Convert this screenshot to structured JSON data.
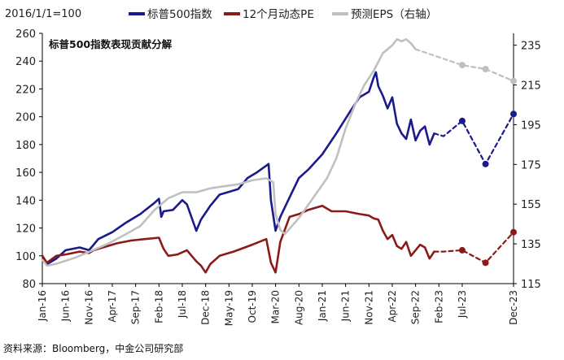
{
  "note": "2016/1/1=100",
  "title": "标普500指数表现贡献分解",
  "source": "资料来源：Bloomberg，中金公司研究部",
  "colors": {
    "sp500": "#1a1a8c",
    "pe": "#8b1a1a",
    "eps": "#c0c0c0",
    "axis": "#000000"
  },
  "chart_data": {
    "type": "line",
    "x_ticks": [
      "Jan-16",
      "Jun-16",
      "Nov-16",
      "Apr-17",
      "Sep-17",
      "Feb-18",
      "Jul-18",
      "Dec-18",
      "May-19",
      "Oct-19",
      "Mar-20",
      "Aug-20",
      "Jan-21",
      "Jun-21",
      "Nov-21",
      "Apr-22",
      "Sep-22",
      "Feb-23",
      "Jul-23",
      "Dec-23"
    ],
    "y_left": {
      "ticks": [
        80,
        100,
        120,
        140,
        160,
        180,
        200,
        220,
        240,
        260
      ],
      "range": [
        80,
        260
      ]
    },
    "y_right": {
      "ticks": [
        115,
        135,
        155,
        175,
        195,
        215,
        235
      ],
      "range": [
        115,
        241
      ]
    },
    "series": [
      {
        "name": "标普500指数",
        "axis": "left",
        "style": "solid",
        "points": [
          [
            0,
            100
          ],
          [
            1,
            94
          ],
          [
            3,
            98
          ],
          [
            5,
            104
          ],
          [
            8,
            106
          ],
          [
            10,
            104
          ],
          [
            11,
            108
          ],
          [
            12,
            112
          ],
          [
            15,
            117
          ],
          [
            18,
            124
          ],
          [
            21,
            130
          ],
          [
            24,
            138
          ],
          [
            25,
            141
          ],
          [
            25.5,
            128
          ],
          [
            26,
            132
          ],
          [
            28,
            133
          ],
          [
            30,
            140
          ],
          [
            31,
            137
          ],
          [
            33,
            118
          ],
          [
            34,
            126
          ],
          [
            36,
            136
          ],
          [
            38,
            144
          ],
          [
            40,
            146
          ],
          [
            42,
            148
          ],
          [
            44,
            156
          ],
          [
            46,
            160
          ],
          [
            48.5,
            166
          ],
          [
            49,
            140
          ],
          [
            50,
            118
          ],
          [
            51,
            128
          ],
          [
            53,
            142
          ],
          [
            55,
            156
          ],
          [
            57,
            162
          ],
          [
            60,
            173
          ],
          [
            63,
            188
          ],
          [
            66,
            204
          ],
          [
            68,
            214
          ],
          [
            70,
            218
          ],
          [
            71,
            228
          ],
          [
            71.5,
            232
          ],
          [
            72,
            222
          ],
          [
            73,
            215
          ],
          [
            74,
            206
          ],
          [
            75,
            214
          ],
          [
            76,
            195
          ],
          [
            77,
            188
          ],
          [
            78,
            184
          ],
          [
            79,
            198
          ],
          [
            80,
            183
          ],
          [
            81,
            190
          ],
          [
            82,
            193
          ],
          [
            83,
            180
          ],
          [
            84,
            188
          ]
        ]
      },
      {
        "name": "标普500指数",
        "axis": "left",
        "style": "dashed",
        "points": [
          [
            84,
            188
          ],
          [
            86,
            186
          ],
          [
            90,
            197
          ],
          [
            95,
            166
          ],
          [
            101,
            202
          ]
        ]
      },
      {
        "name": "12个月动态PE",
        "axis": "left",
        "style": "solid",
        "points": [
          [
            0,
            100
          ],
          [
            1,
            95
          ],
          [
            3,
            100
          ],
          [
            5,
            101
          ],
          [
            8,
            103
          ],
          [
            10,
            102
          ],
          [
            11,
            104
          ],
          [
            13,
            106
          ],
          [
            16,
            109
          ],
          [
            19,
            111
          ],
          [
            22,
            112
          ],
          [
            25,
            113
          ],
          [
            26,
            105
          ],
          [
            27,
            100
          ],
          [
            29,
            101
          ],
          [
            31,
            104
          ],
          [
            33,
            96
          ],
          [
            34,
            93
          ],
          [
            35,
            88
          ],
          [
            36,
            94
          ],
          [
            38,
            100
          ],
          [
            41,
            103
          ],
          [
            45,
            108
          ],
          [
            48,
            112
          ],
          [
            49,
            95
          ],
          [
            50,
            88
          ],
          [
            51,
            110
          ],
          [
            53,
            128
          ],
          [
            55,
            130
          ],
          [
            57,
            133
          ],
          [
            60,
            136
          ],
          [
            62,
            132
          ],
          [
            65,
            132
          ],
          [
            68,
            130
          ],
          [
            70,
            129
          ],
          [
            71,
            127
          ],
          [
            72,
            126
          ],
          [
            73,
            118
          ],
          [
            74,
            112
          ],
          [
            75,
            115
          ],
          [
            76,
            107
          ],
          [
            77,
            105
          ],
          [
            78,
            110
          ],
          [
            79,
            100
          ],
          [
            80,
            104
          ],
          [
            81,
            108
          ],
          [
            82,
            106
          ],
          [
            83,
            98
          ],
          [
            84,
            103
          ]
        ]
      },
      {
        "name": "12个月动态PE",
        "axis": "left",
        "style": "dashed",
        "points": [
          [
            84,
            103
          ],
          [
            86,
            103
          ],
          [
            90,
            104
          ],
          [
            95,
            95
          ],
          [
            101,
            117
          ]
        ]
      },
      {
        "name": "预测EPS（右轴）",
        "axis": "right",
        "style": "solid",
        "points": [
          [
            0,
            127
          ],
          [
            1,
            124
          ],
          [
            3,
            125
          ],
          [
            7,
            128
          ],
          [
            10,
            131
          ],
          [
            14,
            135
          ],
          [
            18,
            140
          ],
          [
            21,
            144
          ],
          [
            24,
            152
          ],
          [
            27,
            158
          ],
          [
            30,
            161
          ],
          [
            33,
            161
          ],
          [
            36,
            163
          ],
          [
            39,
            164
          ],
          [
            42,
            165
          ],
          [
            45,
            167
          ],
          [
            48,
            168
          ],
          [
            49.5,
            166
          ],
          [
            50,
            150
          ],
          [
            51,
            142
          ],
          [
            52,
            140
          ],
          [
            55,
            148
          ],
          [
            58,
            158
          ],
          [
            61,
            168
          ],
          [
            63,
            178
          ],
          [
            65,
            193
          ],
          [
            67,
            205
          ],
          [
            69,
            215
          ],
          [
            71,
            222
          ],
          [
            73,
            231
          ],
          [
            75,
            235
          ],
          [
            76,
            238
          ],
          [
            77,
            237
          ],
          [
            78,
            238
          ],
          [
            79,
            236
          ],
          [
            80,
            233
          ]
        ]
      },
      {
        "name": "预测EPS（右轴）",
        "axis": "right",
        "style": "dashed",
        "points": [
          [
            80,
            233
          ],
          [
            85,
            229
          ],
          [
            90,
            225
          ],
          [
            95,
            223
          ],
          [
            101,
            217
          ]
        ]
      }
    ],
    "markers": [
      {
        "series": "标普500指数",
        "points": [
          [
            90,
            197
          ],
          [
            95,
            166
          ],
          [
            101,
            202
          ]
        ]
      },
      {
        "series": "12个月动态PE",
        "points": [
          [
            90,
            104
          ],
          [
            95,
            95
          ],
          [
            101,
            117
          ]
        ]
      },
      {
        "series": "预测EPS（右轴）",
        "points": [
          [
            90,
            225
          ],
          [
            95,
            223
          ],
          [
            101,
            217
          ]
        ]
      }
    ],
    "legend": [
      {
        "name": "标普500指数",
        "color": "#1a1a8c"
      },
      {
        "name": "12个月动态PE",
        "color": "#8b1a1a"
      },
      {
        "name": "预测EPS（右轴）",
        "color": "#c0c0c0"
      }
    ],
    "grid": false,
    "legend_position": "top"
  }
}
